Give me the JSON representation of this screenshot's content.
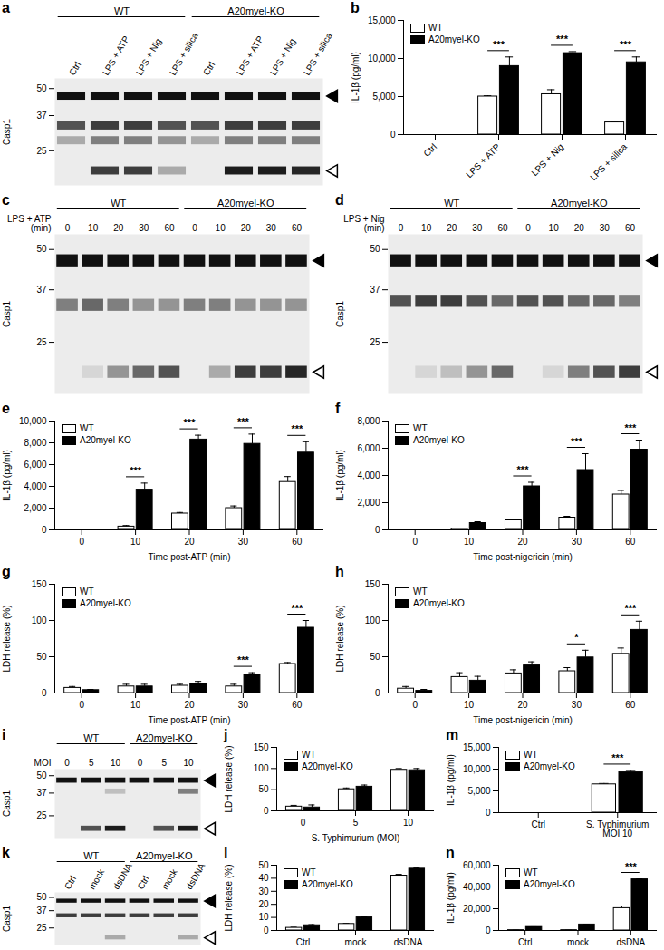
{
  "chart_data": [
    {
      "panel": "a",
      "type": "blot",
      "groups": [
        {
          "name": "WT",
          "lanes": [
            "Ctrl",
            "LPS + ATP",
            "LPS + Nig",
            "LPS + silica"
          ]
        },
        {
          "name": "A20myel-KO",
          "lanes": [
            "Ctrl",
            "LPS + ATP",
            "LPS + Nig",
            "LPS + silica"
          ]
        }
      ],
      "y_label": "Casp1",
      "log": "y",
      "ylim": [
        17,
        56
      ],
      "yticks": [
        50,
        37,
        25
      ],
      "bands": [
        {
          "kda": 46,
          "marker": "filled",
          "intensity": [
            1,
            1,
            1,
            1,
            1,
            1,
            1,
            1
          ]
        },
        {
          "kda": 33,
          "intensity": [
            0.7,
            0.8,
            0.8,
            0.7,
            0.7,
            0.8,
            0.8,
            0.8
          ]
        },
        {
          "kda": 28,
          "intensity": [
            0.3,
            0.5,
            0.5,
            0.4,
            0.3,
            0.5,
            0.5,
            0.5
          ]
        },
        {
          "kda": 20,
          "marker": "open",
          "intensity": [
            0,
            0.8,
            0.8,
            0.3,
            0,
            0.95,
            0.95,
            0.9
          ]
        }
      ]
    },
    {
      "panel": "b",
      "type": "bar",
      "categories": [
        "Ctrl",
        "LPS + ATP",
        "LPS + Nig",
        "LPS + silica"
      ],
      "y_label": "IL-1β (pg/ml)",
      "ylim": [
        0,
        15000
      ],
      "yticks": [
        0,
        {
          "value": 5000,
          "label": "5,000"
        },
        {
          "value": 10000,
          "label": "10,000"
        },
        {
          "value": 15000,
          "label": "15,000"
        }
      ],
      "legend": "top-left",
      "series": [
        {
          "name": "WT",
          "color": "#ffffff",
          "values": [
            0,
            5000,
            5300,
            1600
          ],
          "errors": [
            0,
            100,
            600,
            100
          ]
        },
        {
          "name": "A20myel-KO",
          "color": "#000000",
          "values": [
            0,
            9000,
            10700,
            9500
          ],
          "errors": [
            0,
            1200,
            200,
            700
          ]
        }
      ],
      "annotations": [
        {
          "category": "LPS + ATP",
          "label": "***"
        },
        {
          "category": "LPS + Nig",
          "label": "***"
        },
        {
          "category": "LPS + silica",
          "label": "***"
        }
      ]
    },
    {
      "panel": "c",
      "type": "blot",
      "lane_title": "LPS + ATP\n(min)",
      "groups": [
        {
          "name": "WT",
          "lanes": [
            "0",
            "10",
            "20",
            "30",
            "60"
          ]
        },
        {
          "name": "A20myel-KO",
          "lanes": [
            "0",
            "10",
            "20",
            "30",
            "60"
          ]
        }
      ],
      "y_label": "Casp1",
      "log": "y",
      "ylim": [
        17,
        56
      ],
      "yticks": [
        50,
        37,
        25
      ],
      "bands": [
        {
          "kda": 46,
          "marker": "filled",
          "intensity": [
            1,
            1,
            1,
            1,
            1,
            1,
            1,
            1,
            1,
            1
          ]
        },
        {
          "kda": 33,
          "intensity": [
            0.5,
            0.6,
            0.5,
            0.4,
            0.4,
            0.5,
            0.5,
            0.4,
            0.4,
            0.4
          ]
        },
        {
          "kda": 20,
          "marker": "open",
          "intensity": [
            0,
            0.1,
            0.4,
            0.6,
            0.7,
            0,
            0.3,
            0.8,
            0.8,
            0.9
          ]
        }
      ]
    },
    {
      "panel": "d",
      "type": "blot",
      "lane_title": "LPS + Nig\n(min)",
      "groups": [
        {
          "name": "WT",
          "lanes": [
            "0",
            "10",
            "20",
            "30",
            "60"
          ]
        },
        {
          "name": "A20myel-KO",
          "lanes": [
            "0",
            "10",
            "20",
            "30",
            "60"
          ]
        }
      ],
      "y_label": "Casp1",
      "log": "y",
      "ylim": [
        17,
        56
      ],
      "yticks": [
        50,
        37,
        25
      ],
      "bands": [
        {
          "kda": 46,
          "marker": "filled",
          "intensity": [
            1,
            1,
            1,
            1,
            1,
            1,
            1,
            1,
            1,
            1
          ]
        },
        {
          "kda": 34,
          "intensity": [
            0.7,
            0.8,
            0.8,
            0.7,
            0.6,
            0.7,
            0.7,
            0.6,
            0.6,
            0.5
          ]
        },
        {
          "kda": 20,
          "marker": "open",
          "intensity": [
            0,
            0.1,
            0.2,
            0.4,
            0.6,
            0,
            0.1,
            0.5,
            0.7,
            0.8
          ]
        }
      ]
    },
    {
      "panel": "e",
      "type": "bar",
      "categories": [
        "0",
        "10",
        "20",
        "30",
        "60"
      ],
      "x_label": "Time post-ATP (min)",
      "y_label": "IL-1β (pg/ml)",
      "ylim": [
        0,
        10000
      ],
      "yticks": [
        0,
        {
          "value": 2000,
          "label": "2,000"
        },
        {
          "value": 4000,
          "label": "4,000"
        },
        {
          "value": 6000,
          "label": "6,000"
        },
        {
          "value": 8000,
          "label": "8,000"
        },
        {
          "value": 10000,
          "label": "10,000"
        }
      ],
      "legend": "top-left",
      "series": [
        {
          "name": "WT",
          "color": "#ffffff",
          "values": [
            0,
            300,
            1500,
            2000,
            4400
          ],
          "errors": [
            0,
            100,
            100,
            200,
            500
          ]
        },
        {
          "name": "A20myel-KO",
          "color": "#000000",
          "values": [
            0,
            3700,
            8300,
            7900,
            7100
          ],
          "errors": [
            0,
            600,
            400,
            900,
            1000
          ]
        }
      ],
      "annotations": [
        {
          "category": "10",
          "label": "***"
        },
        {
          "category": "20",
          "label": "***"
        },
        {
          "category": "30",
          "label": "***"
        },
        {
          "category": "60",
          "label": "***"
        }
      ]
    },
    {
      "panel": "f",
      "type": "bar",
      "categories": [
        "0",
        "10",
        "20",
        "30",
        "60"
      ],
      "x_label": "Time post-nigericin (min)",
      "y_label": "IL-1β (pg/ml)",
      "ylim": [
        0,
        8000
      ],
      "yticks": [
        0,
        {
          "value": 2000,
          "label": "2,000"
        },
        {
          "value": 4000,
          "label": "4,000"
        },
        {
          "value": 6000,
          "label": "6,000"
        },
        {
          "value": 8000,
          "label": "8,000"
        }
      ],
      "legend": "top-left",
      "series": [
        {
          "name": "WT",
          "color": "#ffffff",
          "values": [
            0,
            100,
            700,
            900,
            2600
          ],
          "errors": [
            0,
            0,
            100,
            100,
            300
          ]
        },
        {
          "name": "A20myel-KO",
          "color": "#000000",
          "values": [
            0,
            500,
            3200,
            4400,
            5900
          ],
          "errors": [
            0,
            100,
            300,
            1200,
            700
          ]
        }
      ],
      "annotations": [
        {
          "category": "20",
          "label": "***"
        },
        {
          "category": "30",
          "label": "***"
        },
        {
          "category": "60",
          "label": "***"
        }
      ]
    },
    {
      "panel": "g",
      "type": "bar",
      "categories": [
        "0",
        "10",
        "20",
        "30",
        "60"
      ],
      "x_label": "Time post-ATP (min)",
      "y_label": "LDH release (%)",
      "ylim": [
        0,
        150
      ],
      "yticks": [
        0,
        50,
        100,
        150
      ],
      "legend": "top-left",
      "series": [
        {
          "name": "WT",
          "color": "#ffffff",
          "values": [
            7,
            9,
            10,
            9,
            40
          ],
          "errors": [
            2,
            3,
            2,
            3,
            2
          ]
        },
        {
          "name": "A20myel-KO",
          "color": "#000000",
          "values": [
            4,
            9,
            13,
            25,
            90
          ],
          "errors": [
            1,
            3,
            3,
            3,
            10
          ]
        }
      ],
      "annotations": [
        {
          "category": "30",
          "label": "***"
        },
        {
          "category": "60",
          "label": "***"
        }
      ]
    },
    {
      "panel": "h",
      "type": "bar",
      "categories": [
        "0",
        "10",
        "20",
        "30",
        "60"
      ],
      "x_label": "Time post-nigericin (min)",
      "y_label": "LDH release (%)",
      "ylim": [
        0,
        150
      ],
      "yticks": [
        0,
        50,
        100,
        150
      ],
      "legend": "top-left",
      "series": [
        {
          "name": "WT",
          "color": "#ffffff",
          "values": [
            6,
            22,
            27,
            30,
            54
          ],
          "errors": [
            3,
            6,
            5,
            5,
            8
          ]
        },
        {
          "name": "A20myel-KO",
          "color": "#000000",
          "values": [
            3,
            17,
            38,
            49,
            87
          ],
          "errors": [
            2,
            6,
            5,
            10,
            12
          ]
        }
      ],
      "annotations": [
        {
          "category": "30",
          "label": "*"
        },
        {
          "category": "60",
          "label": "***"
        }
      ]
    },
    {
      "panel": "i",
      "type": "blot",
      "lane_title": "MOI",
      "groups": [
        {
          "name": "WT",
          "lanes": [
            "0",
            "5",
            "10"
          ]
        },
        {
          "name": "A20myel-KO",
          "lanes": [
            "0",
            "5",
            "10"
          ]
        }
      ],
      "y_label": "Casp1",
      "log": "y",
      "ylim": [
        17,
        56
      ],
      "yticks": [
        50,
        37,
        25
      ],
      "bands": [
        {
          "kda": 46,
          "marker": "filled",
          "intensity": [
            1,
            1,
            1,
            1,
            1,
            1
          ]
        },
        {
          "kda": 38,
          "intensity": [
            0,
            0,
            0.2,
            0,
            0,
            0.5
          ]
        },
        {
          "kda": 20,
          "marker": "open",
          "intensity": [
            0,
            0.7,
            0.95,
            0,
            0.7,
            0.95
          ]
        }
      ]
    },
    {
      "panel": "j",
      "type": "bar",
      "categories": [
        "0",
        "5",
        "10"
      ],
      "x_label": "S. Typhimurium (MOI)",
      "y_label": "LDH release (%)",
      "ylim": [
        0,
        150
      ],
      "yticks": [
        0,
        50,
        100,
        150
      ],
      "legend": "top-left",
      "series": [
        {
          "name": "WT",
          "color": "#ffffff",
          "values": [
            10,
            51,
            97
          ],
          "errors": [
            3,
            3,
            3
          ]
        },
        {
          "name": "A20myel-KO",
          "color": "#000000",
          "values": [
            8,
            57,
            96
          ],
          "errors": [
            6,
            4,
            4
          ]
        }
      ]
    },
    {
      "panel": "k",
      "type": "blot",
      "groups": [
        {
          "name": "WT",
          "lanes": [
            "Ctrl",
            "mock",
            "dsDNA"
          ]
        },
        {
          "name": "A20myel-KO",
          "lanes": [
            "Ctrl",
            "mock",
            "dsDNA"
          ]
        }
      ],
      "y_label": "Casp1",
      "log": "y",
      "ylim": [
        17,
        56
      ],
      "yticks": [
        50,
        37,
        25
      ],
      "bands": [
        {
          "kda": 46,
          "marker": "filled",
          "intensity": [
            1,
            1,
            1,
            1,
            1,
            1
          ]
        },
        {
          "kda": 33,
          "intensity": [
            0.8,
            0.8,
            0.8,
            0.8,
            0.8,
            0.8
          ]
        },
        {
          "kda": 20,
          "marker": "open",
          "intensity": [
            0,
            0,
            0.3,
            0,
            0,
            0.3
          ]
        }
      ]
    },
    {
      "panel": "l",
      "type": "bar",
      "categories": [
        "Ctrl",
        "mock",
        "dsDNA"
      ],
      "y_label": "LDH release (%)",
      "ylim": [
        0,
        50
      ],
      "yticks": [
        0,
        10,
        20,
        30,
        40,
        50
      ],
      "legend": "top-left",
      "series": [
        {
          "name": "WT",
          "color": "#ffffff",
          "values": [
            2,
            5,
            42
          ],
          "errors": [
            0.5,
            0.5,
            1
          ]
        },
        {
          "name": "A20myel-KO",
          "color": "#000000",
          "values": [
            4,
            10,
            48
          ],
          "errors": [
            0.5,
            0.5,
            0.5
          ]
        }
      ]
    },
    {
      "panel": "m",
      "type": "bar",
      "categories": [
        "Ctrl",
        "S. Typhimurium\nMOI 10"
      ],
      "y_label": "IL-1β (pg/ml)",
      "ylim": [
        0,
        15000
      ],
      "yticks": [
        0,
        {
          "value": 5000,
          "label": "5,000"
        },
        {
          "value": 10000,
          "label": "10,000"
        },
        {
          "value": 15000,
          "label": "15,000"
        }
      ],
      "legend": "top-left",
      "series": [
        {
          "name": "WT",
          "color": "#ffffff",
          "values": [
            0,
            6500
          ],
          "errors": [
            0,
            200
          ]
        },
        {
          "name": "A20myel-KO",
          "color": "#000000",
          "values": [
            0,
            9300
          ],
          "errors": [
            0,
            400
          ]
        }
      ],
      "annotations": [
        {
          "category": "S. Typhimurium\nMOI 10",
          "label": "***"
        }
      ]
    },
    {
      "panel": "n",
      "type": "bar",
      "categories": [
        "Ctrl",
        "mock",
        "dsDNA"
      ],
      "y_label": "IL-1β (pg/ml)",
      "ylim": [
        0,
        60000
      ],
      "yticks": [
        0,
        {
          "value": 20000,
          "label": "20,000"
        },
        {
          "value": 40000,
          "label": "40,000"
        },
        {
          "value": 60000,
          "label": "60,000"
        }
      ],
      "legend": "top-left",
      "series": [
        {
          "name": "WT",
          "color": "#ffffff",
          "values": [
            300,
            300,
            20500
          ],
          "errors": [
            100,
            100,
            2000
          ]
        },
        {
          "name": "A20myel-KO",
          "color": "#000000",
          "values": [
            4000,
            5500,
            47000
          ],
          "errors": [
            200,
            300,
            500
          ]
        }
      ],
      "annotations": [
        {
          "category": "dsDNA",
          "label": "***"
        }
      ]
    }
  ]
}
